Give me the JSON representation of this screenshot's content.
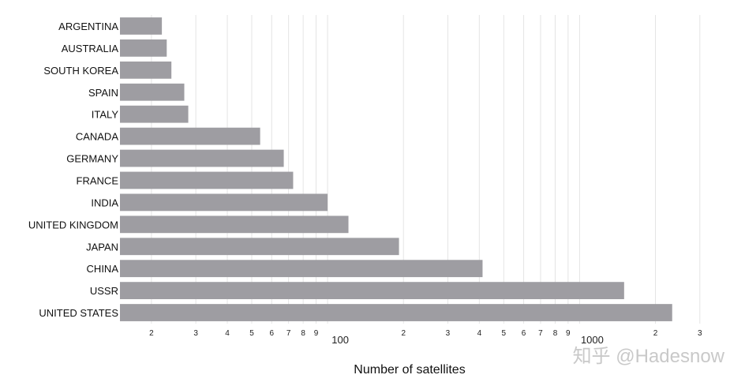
{
  "chart_data": {
    "type": "bar",
    "orientation": "horizontal",
    "xscale": "log",
    "xlim": [
      15,
      3300
    ],
    "categories": [
      "ARGENTINA",
      "AUSTRALIA",
      "SOUTH KOREA",
      "SPAIN",
      "ITALY",
      "CANADA",
      "GERMANY",
      "FRANCE",
      "INDIA",
      "UNITED KINGDOM",
      "JAPAN",
      "CHINA",
      "USSR",
      "UNITED STATES"
    ],
    "values": [
      22,
      23,
      24,
      27,
      28,
      54,
      67,
      73,
      100,
      121,
      192,
      412,
      1502,
      2330
    ],
    "xlabel": "Number of satellites",
    "major_ticks": [
      {
        "value": 100,
        "label": "100"
      },
      {
        "value": 1000,
        "label": "1000"
      }
    ],
    "minor_ticks": [
      {
        "value": 20,
        "label": "2"
      },
      {
        "value": 30,
        "label": "3"
      },
      {
        "value": 40,
        "label": "4"
      },
      {
        "value": 50,
        "label": "5"
      },
      {
        "value": 60,
        "label": "6"
      },
      {
        "value": 70,
        "label": "7"
      },
      {
        "value": 80,
        "label": "8"
      },
      {
        "value": 90,
        "label": "9"
      },
      {
        "value": 200,
        "label": "2"
      },
      {
        "value": 300,
        "label": "3"
      },
      {
        "value": 400,
        "label": "4"
      },
      {
        "value": 500,
        "label": "5"
      },
      {
        "value": 600,
        "label": "6"
      },
      {
        "value": 700,
        "label": "7"
      },
      {
        "value": 800,
        "label": "8"
      },
      {
        "value": 900,
        "label": "9"
      },
      {
        "value": 2000,
        "label": "2"
      },
      {
        "value": 3000,
        "label": "3"
      }
    ],
    "grid": true,
    "bar_color": "#9e9da2"
  },
  "watermark": "知乎 @Hadesnow"
}
